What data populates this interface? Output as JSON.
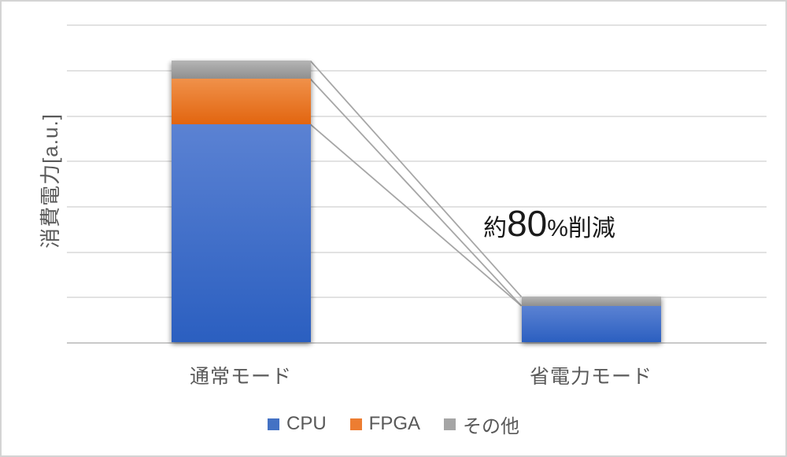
{
  "chart_data": {
    "type": "bar",
    "stacked": true,
    "title": "",
    "xlabel": "",
    "ylabel": "消費電力[a.u.]",
    "categories": [
      "通常モード",
      "省電力モード"
    ],
    "series": [
      {
        "name": "CPU",
        "color": "#4472c4",
        "gradient_top": "#5b82d3",
        "gradient_bottom": "#2b5fc0",
        "values": [
          4.8,
          0.8
        ]
      },
      {
        "name": "FPGA",
        "color": "#ed7d31",
        "gradient_top": "#f0914a",
        "gradient_bottom": "#e2650f",
        "values": [
          1.0,
          0.0
        ]
      },
      {
        "name": "その他",
        "color": "#a5a5a5",
        "gradient_top": "#b5b5b5",
        "gradient_bottom": "#8f8f8f",
        "values": [
          0.4,
          0.2
        ]
      }
    ],
    "ylim": [
      0,
      7
    ],
    "gridline_step": 1,
    "grid": true,
    "tick_labels_shown": false,
    "legend_position": "bottom",
    "series_connector_lines": true,
    "annotation": {
      "prefix": "約",
      "big": "80",
      "suffix": "%削減",
      "full_text": "約80%削減"
    }
  },
  "colors": {
    "gridline": "#e2e2e2",
    "axis_line": "#c9c9c9",
    "connector_line": "#a6a6a6",
    "label_text": "#595959",
    "annotation_text": "#1a1a1a",
    "frame_border": "#d4d4d4",
    "background": "#ffffff"
  }
}
